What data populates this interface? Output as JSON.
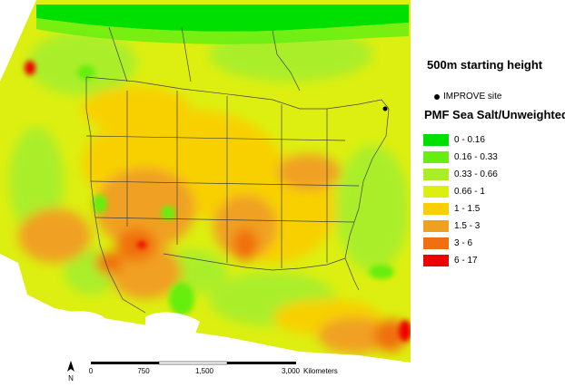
{
  "map": {
    "height_label": "500m starting height",
    "site_legend": {
      "label": "IMPROVE site"
    },
    "legend": {
      "title": "PMF Sea Salt/Unweighted",
      "items": [
        {
          "label": "0 - 0.16",
          "color": "#00e000"
        },
        {
          "label": "0.16 - 0.33",
          "color": "#66ee10"
        },
        {
          "label": "0.33 - 0.66",
          "color": "#aaee2a"
        },
        {
          "label": "0.66 - 1",
          "color": "#ddef10"
        },
        {
          "label": "1 - 1.5",
          "color": "#f8d000"
        },
        {
          "label": "1.5 - 3",
          "color": "#f0a020"
        },
        {
          "label": "3 - 6",
          "color": "#f07010"
        },
        {
          "label": "6 - 17",
          "color": "#ee0000"
        }
      ]
    },
    "scalebar": {
      "north": "N",
      "ticks": [
        "0",
        "750",
        "1,500",
        "3,000"
      ],
      "unit": "Kilometers"
    }
  }
}
